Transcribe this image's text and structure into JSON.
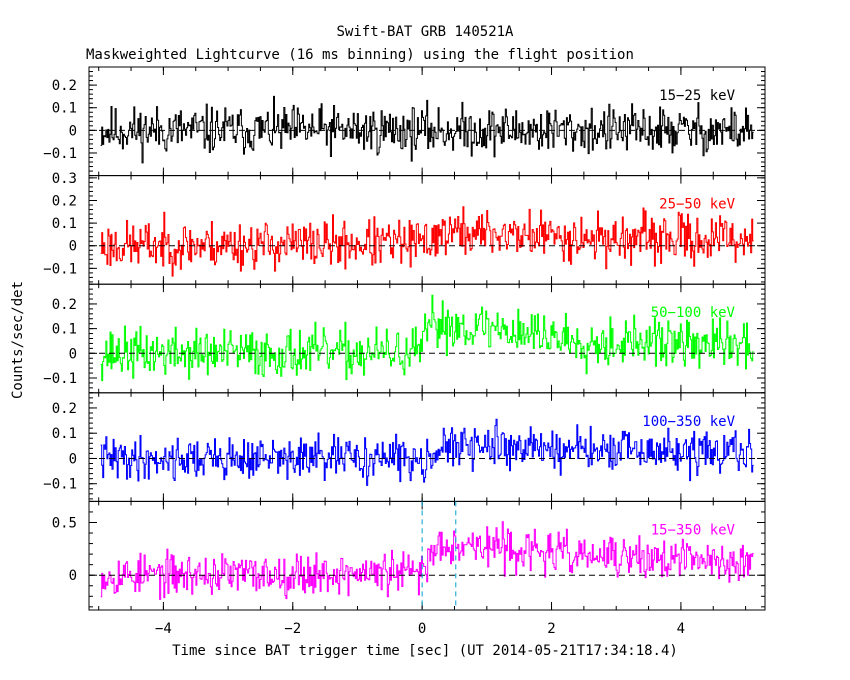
{
  "title": "Swift-BAT GRB 140521A",
  "subtitle": "Maskweighted Lightcurve (16 ms binning) using the flight position",
  "chart_data": {
    "type": "line",
    "xlabel": "Time since BAT trigger time [sec] (UT 2014-05-21T17:34:18.4)",
    "ylabel": "Counts/sec/det",
    "xlim": [
      -5.15,
      5.3
    ],
    "x_ticks": [
      -4,
      -2,
      0,
      2,
      4
    ],
    "x_tick_labels": [
      "−4",
      "−2",
      "0",
      "2",
      "4"
    ],
    "x_bin_width": 0.016,
    "x_range_data": [
      -4.97,
      5.12
    ],
    "vertical_lines": [
      0,
      0.52
    ],
    "panels": [
      {
        "label": "15−25 keV",
        "color": "#000000",
        "ylim": [
          -0.2,
          0.28
        ],
        "y_ticks": [
          -0.1,
          0,
          0.1,
          0.2
        ],
        "y_tick_labels": [
          "−0.1",
          "0",
          "0.1",
          "0.2"
        ],
        "profile": [
          [
            -5,
            0.0
          ],
          [
            5.2,
            0.0
          ]
        ],
        "noise_amplitude": 0.07,
        "seed": 11
      },
      {
        "label": "25−50 keV",
        "color": "#ff0000",
        "ylim": [
          -0.17,
          0.31
        ],
        "y_ticks": [
          -0.1,
          0,
          0.1,
          0.2,
          0.3
        ],
        "y_tick_labels": [
          "−0.1",
          "0",
          "0.1",
          "0.2",
          "0.3"
        ],
        "profile": [
          [
            -5,
            0.0
          ],
          [
            0,
            0.01
          ],
          [
            0.3,
            0.06
          ],
          [
            1.5,
            0.05
          ],
          [
            3,
            0.03
          ],
          [
            5.2,
            0.03
          ]
        ],
        "noise_amplitude": 0.07,
        "seed": 23
      },
      {
        "label": "50−100 keV",
        "color": "#00ff00",
        "ylim": [
          -0.16,
          0.28
        ],
        "y_ticks": [
          -0.1,
          0,
          0.1,
          0.2
        ],
        "y_tick_labels": [
          "−0.1",
          "0",
          "0.1",
          "0.2"
        ],
        "profile": [
          [
            -5,
            0.0
          ],
          [
            -0.05,
            0.0
          ],
          [
            0.15,
            0.12
          ],
          [
            1.2,
            0.1
          ],
          [
            2.5,
            0.05
          ],
          [
            5.2,
            0.03
          ]
        ],
        "noise_amplitude": 0.065,
        "seed": 37
      },
      {
        "label": "100−350 keV",
        "color": "#0000ff",
        "ylim": [
          -0.17,
          0.26
        ],
        "y_ticks": [
          -0.1,
          0,
          0.1,
          0.2
        ],
        "y_tick_labels": [
          "−0.1",
          "0",
          "0.1",
          "0.2"
        ],
        "profile": [
          [
            -5,
            0.0
          ],
          [
            0,
            0.0
          ],
          [
            0.3,
            0.04
          ],
          [
            1.5,
            0.05
          ],
          [
            2.5,
            0.03
          ],
          [
            5.2,
            0.02
          ]
        ],
        "noise_amplitude": 0.055,
        "seed": 41
      },
      {
        "label": "15−350 keV",
        "color": "#ff00ff",
        "ylim": [
          -0.33,
          0.7
        ],
        "y_ticks": [
          0,
          0.5
        ],
        "y_tick_labels": [
          "0",
          "0.5"
        ],
        "profile": [
          [
            -5,
            0.0
          ],
          [
            -0.05,
            0.02
          ],
          [
            0.3,
            0.32
          ],
          [
            1.2,
            0.26
          ],
          [
            2.5,
            0.18
          ],
          [
            5.2,
            0.12
          ]
        ],
        "noise_amplitude": 0.13,
        "seed": 53
      }
    ]
  },
  "colors": {
    "frame": "#000000",
    "marker": "#00a0d0",
    "background": "#ffffff"
  }
}
